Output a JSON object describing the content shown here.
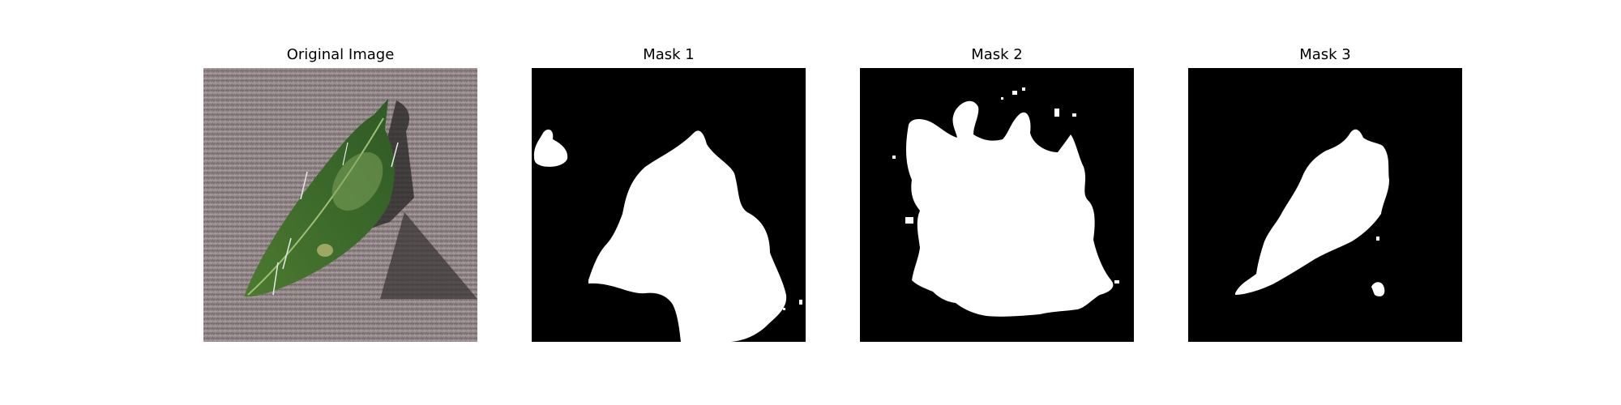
{
  "figure": {
    "panels": [
      {
        "title": "Original Image",
        "kind": "photo",
        "description_icon": "leaf-photo"
      },
      {
        "title": "Mask 1",
        "kind": "mask"
      },
      {
        "title": "Mask 2",
        "kind": "mask"
      },
      {
        "title": "Mask 3",
        "kind": "mask"
      }
    ]
  },
  "colors": {
    "mask_background": "#000000",
    "mask_foreground": "#ffffff",
    "ground": "#8e8284",
    "leaf": "#3f6b2c",
    "leaf_highlight": "#7fa35b",
    "shadow": "#3a3536"
  }
}
